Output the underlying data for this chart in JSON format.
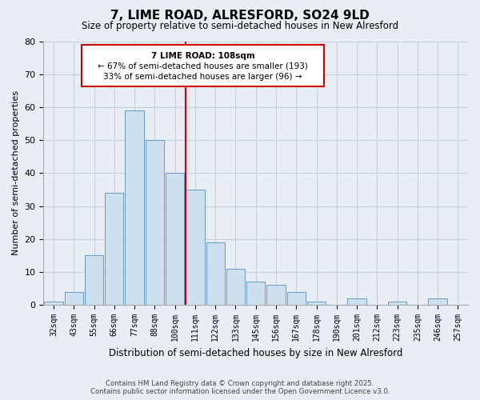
{
  "title": "7, LIME ROAD, ALRESFORD, SO24 9LD",
  "subtitle": "Size of property relative to semi-detached houses in New Alresford",
  "xlabel": "Distribution of semi-detached houses by size in New Alresford",
  "ylabel": "Number of semi-detached properties",
  "categories": [
    "32sqm",
    "43sqm",
    "55sqm",
    "66sqm",
    "77sqm",
    "88sqm",
    "100sqm",
    "111sqm",
    "122sqm",
    "133sqm",
    "145sqm",
    "156sqm",
    "167sqm",
    "178sqm",
    "190sqm",
    "201sqm",
    "212sqm",
    "223sqm",
    "235sqm",
    "246sqm",
    "257sqm"
  ],
  "values": [
    1,
    4,
    15,
    34,
    59,
    50,
    40,
    35,
    19,
    11,
    7,
    6,
    4,
    1,
    0,
    2,
    0,
    1,
    0,
    2,
    0
  ],
  "bar_color": "#cce0f0",
  "bar_edge_color": "#6699cc",
  "annotation_title": "7 LIME ROAD: 108sqm",
  "annotation_line1": "← 67% of semi-detached houses are smaller (193)",
  "annotation_line2": "33% of semi-detached houses are larger (96) →",
  "vline_color": "#cc0000",
  "vline_index": 7,
  "ylim": [
    0,
    80
  ],
  "yticks": [
    0,
    10,
    20,
    30,
    40,
    50,
    60,
    70,
    80
  ],
  "footer_line1": "Contains HM Land Registry data © Crown copyright and database right 2025.",
  "footer_line2": "Contains public sector information licensed under the Open Government Licence v3.0.",
  "bg_color": "#e8eef4",
  "plot_bg_color": "#e8eef4",
  "grid_color": "#c5d0dc"
}
